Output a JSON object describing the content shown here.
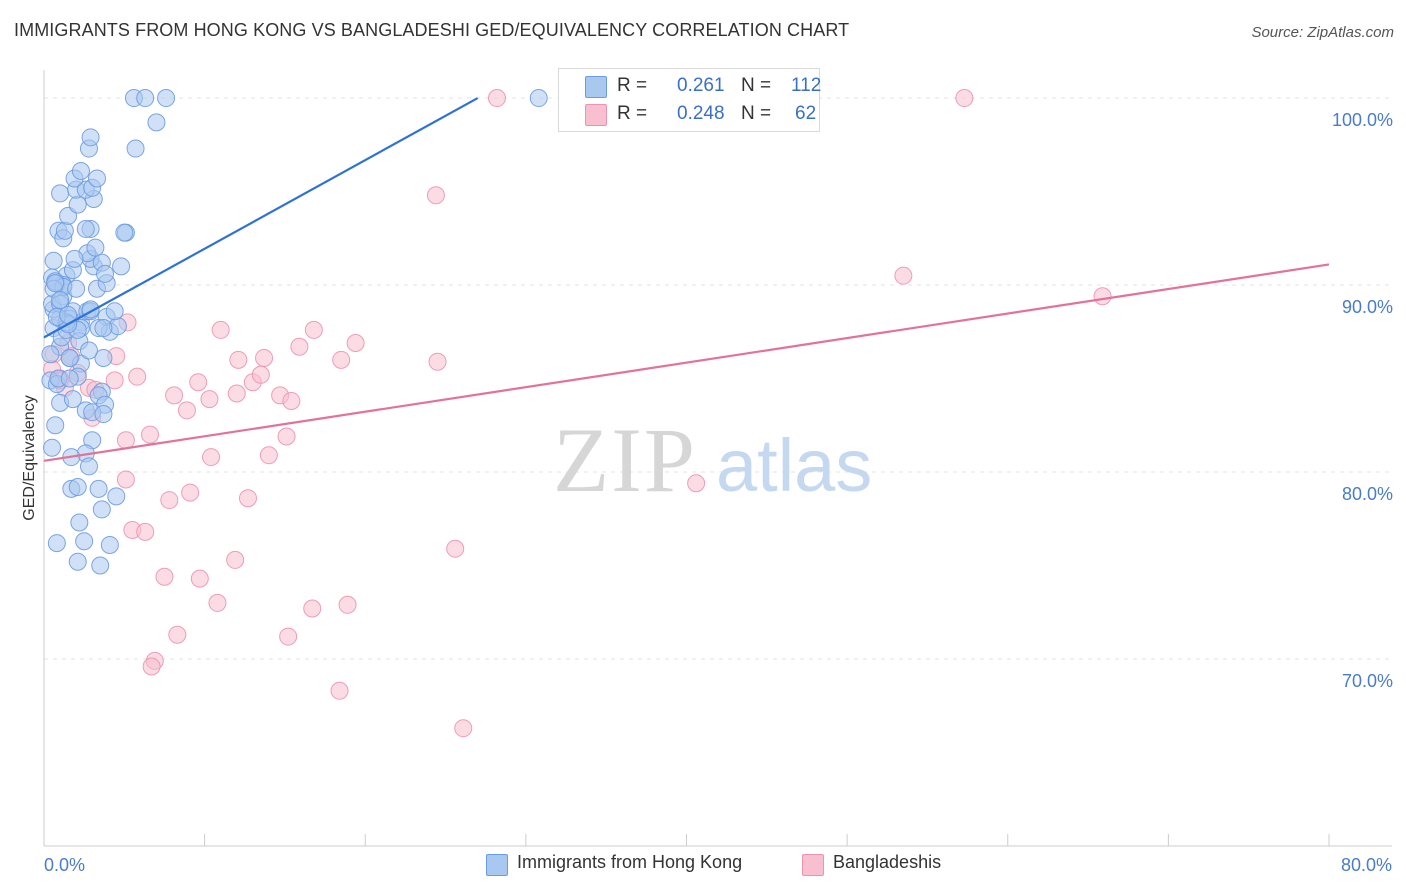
{
  "header": {
    "title": "IMMIGRANTS FROM HONG KONG VS BANGLADESHI GED/EQUIVALENCY CORRELATION CHART",
    "source": "Source: ZipAtlas.com"
  },
  "legend": {
    "r_label": "R =",
    "n_label": "N =",
    "series1": {
      "r": "0.261",
      "n": "112"
    },
    "series2": {
      "r": "0.248",
      "n": "62"
    }
  },
  "bottom_legend": {
    "series1": "Immigrants from Hong Kong",
    "series2": "Bangladeshis"
  },
  "watermark": {
    "zip": "ZIP",
    "atlas": "atlas"
  },
  "colors": {
    "series1_fill": "#a9c8f0",
    "series1_stroke": "#6d9be0",
    "series1_line": "#2f72d6",
    "series2_fill": "#f7bfd0",
    "series2_stroke": "#ec93b0",
    "series2_line": "#e3719a",
    "tick_text": "#4a7cc9"
  },
  "chart_data": {
    "type": "scatter",
    "title": "IMMIGRANTS FROM HONG KONG VS BANGLADESHI GED/EQUIVALENCY CORRELATION CHART",
    "xlabel": "",
    "ylabel": "GED/Equivalency",
    "xlim": [
      0,
      80
    ],
    "ylim": [
      60,
      101.5
    ],
    "x_tick_labels": [
      "0.0%",
      "80.0%"
    ],
    "y_ticks": [
      70,
      80,
      90,
      100
    ],
    "y_tick_labels": [
      "70.0%",
      "80.0%",
      "90.0%",
      "100.0%"
    ],
    "series": [
      {
        "name": "Immigrants from Hong Kong",
        "r": 0.261,
        "n": 112,
        "trend": {
          "x1": 0.0,
          "y1": 87.2,
          "x2": 27.0,
          "y2": 100.0
        },
        "points": [
          [
            0.4,
            84.9
          ],
          [
            0.8,
            84.7
          ],
          [
            1.6,
            86.1
          ],
          [
            1.0,
            86.7
          ],
          [
            0.6,
            87.7
          ],
          [
            2.3,
            88.0
          ],
          [
            1.1,
            87.2
          ],
          [
            1.4,
            87.6
          ],
          [
            1.0,
            88.2
          ],
          [
            2.3,
            87.7
          ],
          [
            1.8,
            88.6
          ],
          [
            0.6,
            88.7
          ],
          [
            0.5,
            89.0
          ],
          [
            1.2,
            89.4
          ],
          [
            1.2,
            89.9
          ],
          [
            0.8,
            90.1
          ],
          [
            1.4,
            90.5
          ],
          [
            1.8,
            90.8
          ],
          [
            1.2,
            90.0
          ],
          [
            1.0,
            89.0
          ],
          [
            0.4,
            86.3
          ],
          [
            0.9,
            85.0
          ],
          [
            1.6,
            88.2
          ],
          [
            2.2,
            87.0
          ],
          [
            2.7,
            88.6
          ],
          [
            3.3,
            89.8
          ],
          [
            3.9,
            90.1
          ],
          [
            3.1,
            91.0
          ],
          [
            2.9,
            91.4
          ],
          [
            3.6,
            91.2
          ],
          [
            4.8,
            91.0
          ],
          [
            2.7,
            91.7
          ],
          [
            1.9,
            91.4
          ],
          [
            0.6,
            91.3
          ],
          [
            0.5,
            90.4
          ],
          [
            0.7,
            90.2
          ],
          [
            1.2,
            89.9
          ],
          [
            2.0,
            89.8
          ],
          [
            2.9,
            88.6
          ],
          [
            3.9,
            88.3
          ],
          [
            4.1,
            87.5
          ],
          [
            4.6,
            87.8
          ],
          [
            3.4,
            87.7
          ],
          [
            2.1,
            87.6
          ],
          [
            3.7,
            86.1
          ],
          [
            2.3,
            85.8
          ],
          [
            1.6,
            86.1
          ],
          [
            2.1,
            85.1
          ],
          [
            2.8,
            86.5
          ],
          [
            3.6,
            84.3
          ],
          [
            3.4,
            84.1
          ],
          [
            3.8,
            83.6
          ],
          [
            2.6,
            83.3
          ],
          [
            3.0,
            83.2
          ],
          [
            3.7,
            83.1
          ],
          [
            1.0,
            83.7
          ],
          [
            1.8,
            83.9
          ],
          [
            1.6,
            85.0
          ],
          [
            0.7,
            82.5
          ],
          [
            3.0,
            81.7
          ],
          [
            0.5,
            81.3
          ],
          [
            2.6,
            81.0
          ],
          [
            1.7,
            80.8
          ],
          [
            2.8,
            80.3
          ],
          [
            1.7,
            79.1
          ],
          [
            2.1,
            79.2
          ],
          [
            3.4,
            79.1
          ],
          [
            4.5,
            78.7
          ],
          [
            3.6,
            78.0
          ],
          [
            2.2,
            77.3
          ],
          [
            0.8,
            76.2
          ],
          [
            2.5,
            76.3
          ],
          [
            4.1,
            76.1
          ],
          [
            2.1,
            75.2
          ],
          [
            3.5,
            75.0
          ],
          [
            0.9,
            92.9
          ],
          [
            1.2,
            92.5
          ],
          [
            1.3,
            92.9
          ],
          [
            1.5,
            93.7
          ],
          [
            2.9,
            93.0
          ],
          [
            5.1,
            92.8
          ],
          [
            5.0,
            92.8
          ],
          [
            3.2,
            92.0
          ],
          [
            2.6,
            93.0
          ],
          [
            1.0,
            94.9
          ],
          [
            2.1,
            94.3
          ],
          [
            3.1,
            94.6
          ],
          [
            2.0,
            95.1
          ],
          [
            2.6,
            95.1
          ],
          [
            3.0,
            95.2
          ],
          [
            1.9,
            95.7
          ],
          [
            3.3,
            95.7
          ],
          [
            2.3,
            96.1
          ],
          [
            2.8,
            97.3
          ],
          [
            5.7,
            97.3
          ],
          [
            2.9,
            97.9
          ],
          [
            7.0,
            98.7
          ],
          [
            3.8,
            90.6
          ],
          [
            2.9,
            88.7
          ],
          [
            1.4,
            88.0
          ],
          [
            1.5,
            87.9
          ],
          [
            0.8,
            88.3
          ],
          [
            0.6,
            89.8
          ],
          [
            0.7,
            90.1
          ],
          [
            1.0,
            89.2
          ],
          [
            1.5,
            88.4
          ],
          [
            4.4,
            88.6
          ],
          [
            3.7,
            87.7
          ],
          [
            5.6,
            100.0
          ],
          [
            6.3,
            100.0
          ],
          [
            7.6,
            100.0
          ],
          [
            30.8,
            100.0
          ]
        ]
      },
      {
        "name": "Bangladeshis",
        "r": 0.248,
        "n": 62,
        "trend": {
          "x1": 0.0,
          "y1": 80.6,
          "x2": 80.0,
          "y2": 91.1
        },
        "points": [
          [
            0.6,
            86.3
          ],
          [
            0.5,
            85.5
          ],
          [
            1.0,
            85.0
          ],
          [
            1.3,
            84.5
          ],
          [
            1.5,
            86.9
          ],
          [
            1.7,
            86.2
          ],
          [
            2.1,
            85.3
          ],
          [
            2.8,
            84.5
          ],
          [
            3.2,
            84.4
          ],
          [
            3.0,
            82.9
          ],
          [
            1.0,
            84.9
          ],
          [
            4.4,
            84.9
          ],
          [
            4.5,
            86.2
          ],
          [
            5.2,
            88.0
          ],
          [
            5.8,
            85.1
          ],
          [
            8.1,
            84.1
          ],
          [
            8.9,
            83.3
          ],
          [
            9.6,
            84.8
          ],
          [
            10.3,
            83.9
          ],
          [
            11.0,
            87.6
          ],
          [
            12.0,
            84.2
          ],
          [
            12.1,
            86.0
          ],
          [
            13.0,
            84.8
          ],
          [
            13.5,
            85.2
          ],
          [
            13.7,
            86.1
          ],
          [
            14.7,
            84.1
          ],
          [
            15.4,
            83.8
          ],
          [
            15.9,
            86.7
          ],
          [
            16.8,
            87.6
          ],
          [
            18.5,
            86.0
          ],
          [
            19.4,
            86.9
          ],
          [
            24.5,
            85.9
          ],
          [
            24.4,
            94.8
          ],
          [
            28.2,
            100.0
          ],
          [
            57.3,
            100.0
          ],
          [
            53.5,
            90.5
          ],
          [
            65.9,
            89.4
          ],
          [
            5.1,
            81.7
          ],
          [
            6.6,
            82.0
          ],
          [
            10.4,
            80.8
          ],
          [
            14.0,
            80.9
          ],
          [
            15.1,
            81.9
          ],
          [
            5.1,
            79.6
          ],
          [
            7.8,
            78.5
          ],
          [
            9.1,
            78.9
          ],
          [
            12.7,
            78.6
          ],
          [
            40.6,
            79.4
          ],
          [
            5.5,
            76.9
          ],
          [
            6.3,
            76.8
          ],
          [
            11.9,
            75.3
          ],
          [
            25.6,
            75.9
          ],
          [
            7.5,
            74.4
          ],
          [
            9.7,
            74.3
          ],
          [
            10.8,
            73.0
          ],
          [
            16.7,
            72.7
          ],
          [
            18.9,
            72.9
          ],
          [
            8.3,
            71.3
          ],
          [
            15.2,
            71.2
          ],
          [
            6.9,
            69.9
          ],
          [
            6.7,
            69.6
          ],
          [
            18.4,
            68.3
          ],
          [
            26.1,
            66.3
          ]
        ]
      }
    ]
  }
}
